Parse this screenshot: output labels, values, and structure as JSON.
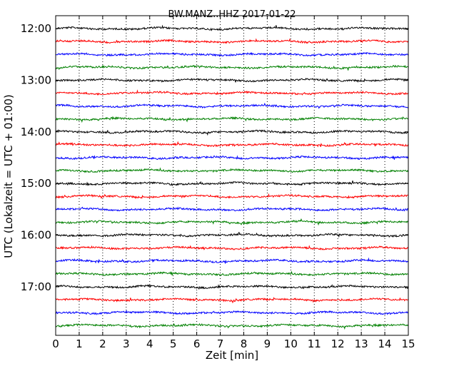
{
  "chart_data": {
    "type": "line",
    "title": "BW.MANZ..HHZ 2017-01-22",
    "xlabel": "Zeit  [min]",
    "ylabel": "UTC (Lokalzeit = UTC + 01:00)",
    "xlim": [
      0,
      15
    ],
    "x_ticks": [
      "0",
      "1",
      "2",
      "3",
      "4",
      "5",
      "6",
      "7",
      "8",
      "9",
      "10",
      "11",
      "12",
      "13",
      "14",
      "15"
    ],
    "y_ticks": [
      "12:00",
      "13:00",
      "14:00",
      "15:00",
      "16:00",
      "17:00"
    ],
    "grid": "vertical dotted at each minute",
    "trace_colors": [
      "#000000",
      "#ff0000",
      "#0000ff",
      "#008000"
    ],
    "trace_interval_min": 15,
    "trace_start": "12:00",
    "trace_count": 24
  }
}
